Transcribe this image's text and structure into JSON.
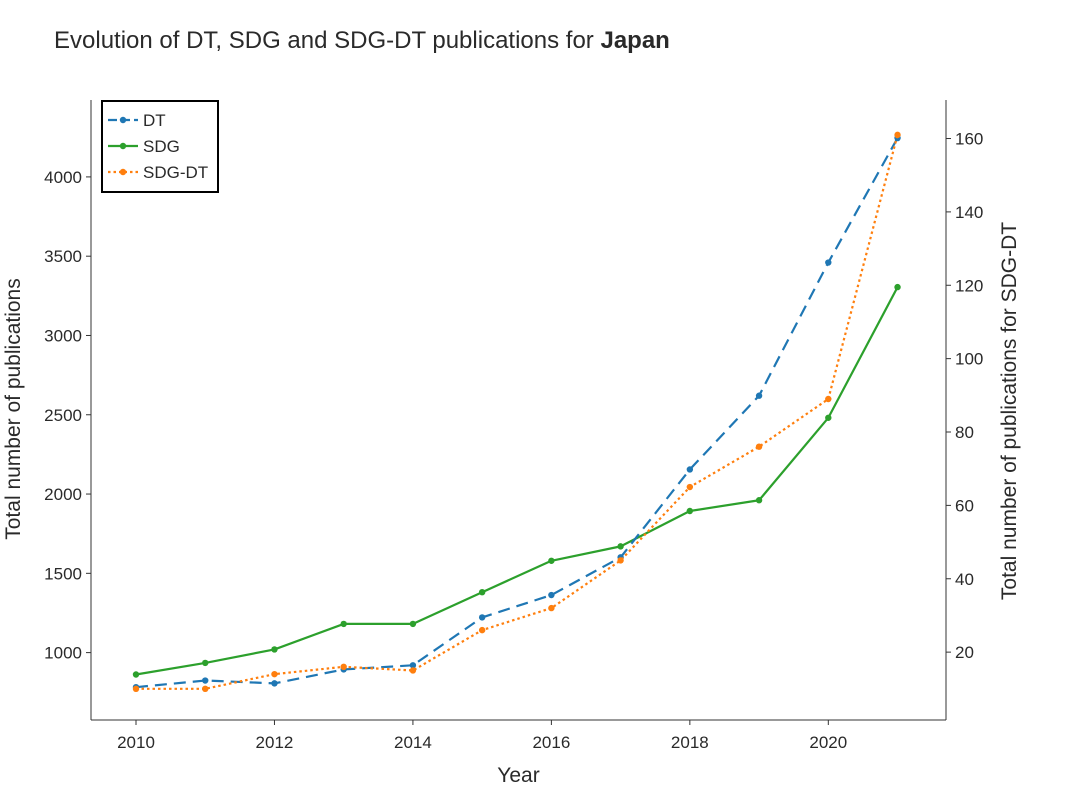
{
  "chart_data": {
    "type": "line",
    "title": "Evolution of DT, SDG and SDG-DT publications for ",
    "title_bold": "Japan",
    "xlabel": "Year",
    "ylabel_left": "Total number of publications",
    "ylabel_right": "Total number of publications for SDG-DT",
    "x": [
      2010,
      2011,
      2012,
      2013,
      2014,
      2015,
      2016,
      2017,
      2018,
      2019,
      2020,
      2021
    ],
    "xticks": [
      2010,
      2012,
      2014,
      2016,
      2018,
      2020
    ],
    "xlim": [
      2009.35,
      2021.7
    ],
    "ylim_left": [
      575,
      4485
    ],
    "yticks_left": [
      1000,
      1500,
      2000,
      2500,
      3000,
      3500,
      4000
    ],
    "ylim_right": [
      1.5,
      170.5
    ],
    "yticks_right": [
      20,
      40,
      60,
      80,
      100,
      120,
      140,
      160
    ],
    "grid": false,
    "legend_position": "top-left",
    "series": [
      {
        "name": "DT",
        "axis": "left",
        "color": "#1f77b4",
        "style": "dashed",
        "values": [
          782,
          824,
          806,
          894,
          920,
          1222,
          1363,
          1601,
          2155,
          2620,
          3460,
          4245
        ]
      },
      {
        "name": "SDG",
        "axis": "left",
        "color": "#2ca02c",
        "style": "solid",
        "values": [
          862,
          935,
          1020,
          1181,
          1181,
          1381,
          1579,
          1670,
          1893,
          1961,
          2481,
          3305
        ]
      },
      {
        "name": "SDG-DT",
        "axis": "right",
        "color": "#ff7f0e",
        "style": "dotted",
        "values": [
          10,
          10,
          14,
          16,
          15,
          26,
          32,
          45,
          65,
          76,
          89,
          161
        ]
      }
    ]
  }
}
